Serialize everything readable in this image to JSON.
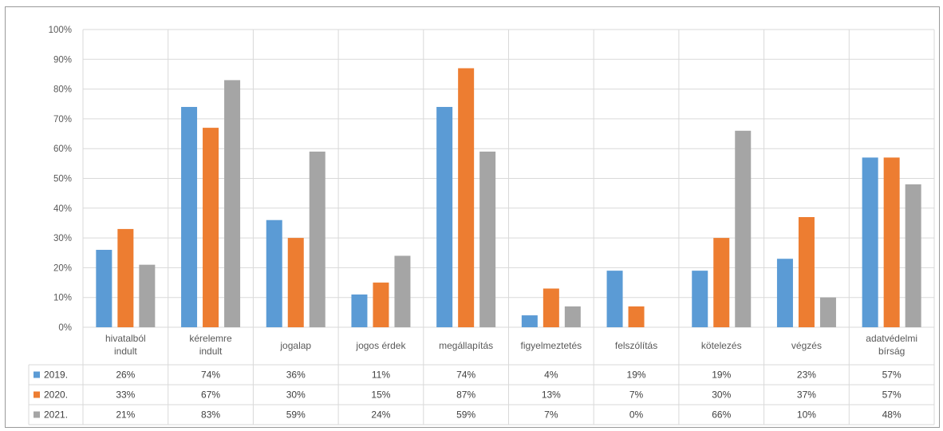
{
  "chart_data": {
    "type": "bar",
    "title": "",
    "xlabel": "",
    "ylabel": "",
    "ylim": [
      0,
      100
    ],
    "y_ticks": [
      "0%",
      "10%",
      "20%",
      "30%",
      "40%",
      "50%",
      "60%",
      "70%",
      "80%",
      "90%",
      "100%"
    ],
    "grid": true,
    "legend": "data-table",
    "categories": [
      [
        "hivatalból",
        "indult"
      ],
      [
        "kérelemre",
        "indult"
      ],
      [
        "jogalap"
      ],
      [
        "jogos érdek"
      ],
      [
        "megállapítás"
      ],
      [
        "figyelmeztetés"
      ],
      [
        "felszólítás"
      ],
      [
        "kötelezés"
      ],
      [
        "végzés"
      ],
      [
        "adatvédelmi",
        "bírság"
      ]
    ],
    "series": [
      {
        "name": "2019.",
        "color": "#5b9bd5",
        "values": [
          26,
          74,
          36,
          11,
          74,
          4,
          19,
          19,
          23,
          57
        ],
        "labels": [
          "26%",
          "74%",
          "36%",
          "11%",
          "74%",
          "4%",
          "19%",
          "19%",
          "23%",
          "57%"
        ]
      },
      {
        "name": "2020.",
        "color": "#ed7d31",
        "values": [
          33,
          67,
          30,
          15,
          87,
          13,
          7,
          30,
          37,
          57
        ],
        "labels": [
          "33%",
          "67%",
          "30%",
          "15%",
          "87%",
          "13%",
          "7%",
          "30%",
          "37%",
          "57%"
        ]
      },
      {
        "name": "2021.",
        "color": "#a5a5a5",
        "values": [
          21,
          83,
          59,
          24,
          59,
          7,
          0,
          66,
          10,
          48
        ],
        "labels": [
          "21%",
          "83%",
          "59%",
          "24%",
          "59%",
          "7%",
          "0%",
          "66%",
          "10%",
          "48%"
        ]
      }
    ]
  }
}
